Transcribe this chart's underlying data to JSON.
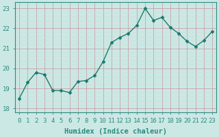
{
  "x": [
    0,
    1,
    2,
    3,
    4,
    5,
    6,
    7,
    8,
    9,
    10,
    11,
    12,
    13,
    14,
    15,
    16,
    17,
    18,
    19,
    20,
    21,
    22,
    23
  ],
  "y": [
    18.5,
    19.3,
    19.8,
    19.7,
    18.9,
    18.9,
    18.8,
    19.35,
    19.4,
    19.65,
    20.35,
    21.3,
    21.55,
    21.75,
    22.15,
    23.0,
    22.4,
    22.55,
    22.05,
    21.75,
    21.35,
    21.1,
    21.4,
    21.85
  ],
  "line_color": "#1a7a6e",
  "marker": "D",
  "marker_size": 2.5,
  "line_width": 1.0,
  "xlabel": "Humidex (Indice chaleur)",
  "xlabel_fontsize": 7.5,
  "xlabel_fontweight": "bold",
  "xlim": [
    -0.5,
    23.5
  ],
  "ylim": [
    17.8,
    23.3
  ],
  "yticks": [
    18,
    19,
    20,
    21,
    22,
    23
  ],
  "xticks": [
    0,
    1,
    2,
    3,
    4,
    5,
    6,
    7,
    8,
    9,
    10,
    11,
    12,
    13,
    14,
    15,
    16,
    17,
    18,
    19,
    20,
    21,
    22,
    23
  ],
  "grid_color_major": "#c0dcd8",
  "grid_color_minor": "#d4ebe7",
  "bg_color": "#cce8e4",
  "tick_fontsize": 6.5,
  "spine_color": "#2a8a7e",
  "axis_color": "#2a8a7e"
}
